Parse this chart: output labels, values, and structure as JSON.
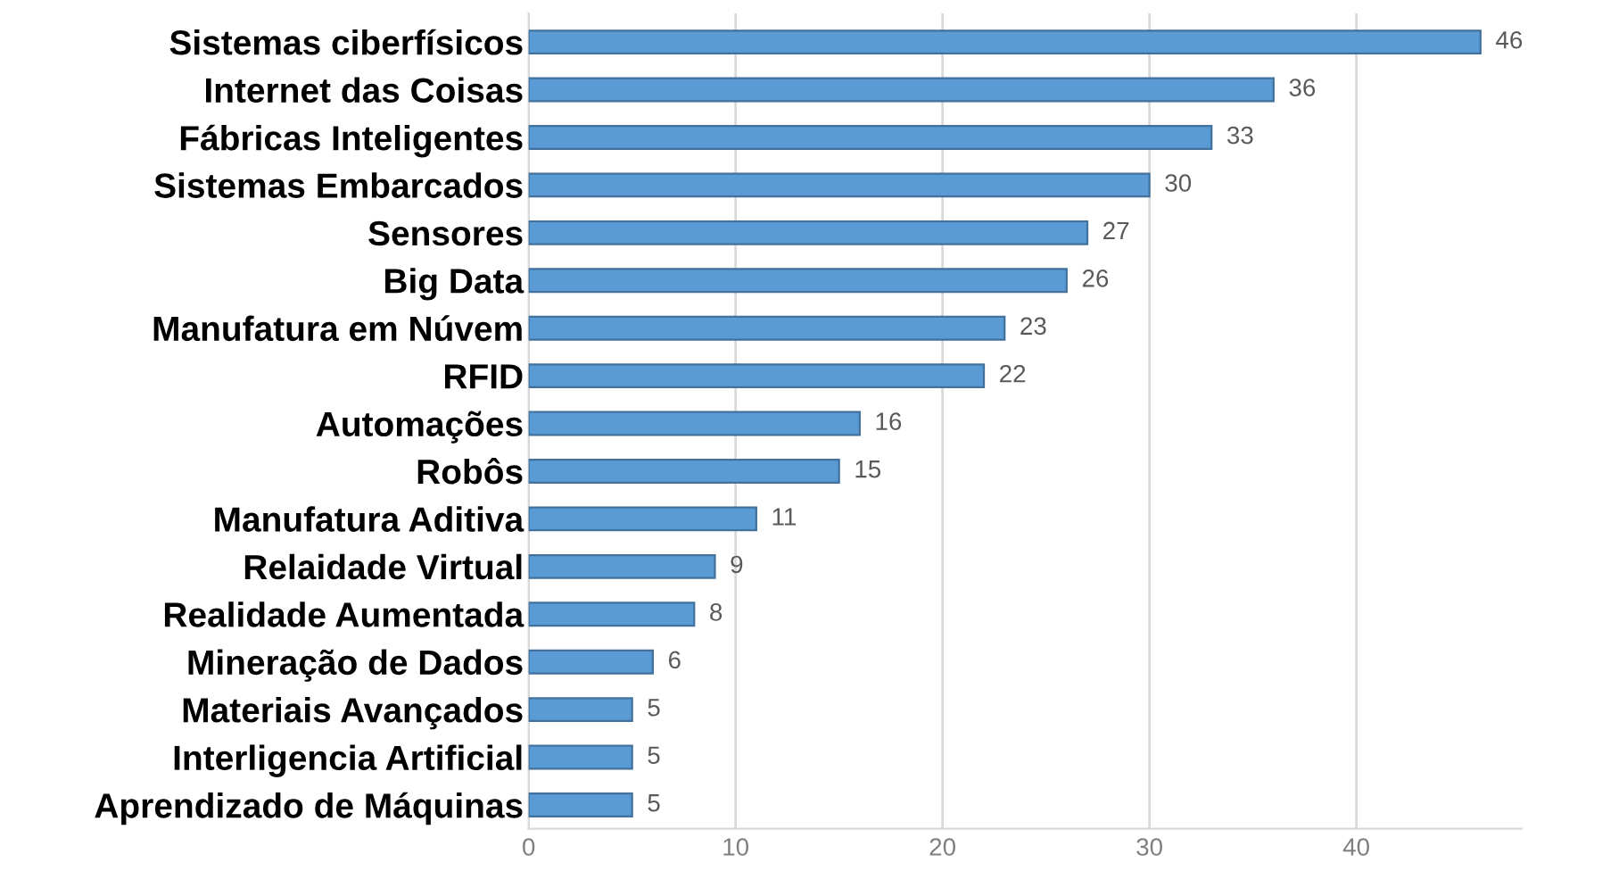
{
  "chart_data": {
    "type": "bar",
    "orientation": "horizontal",
    "categories": [
      "Sistemas ciberfísicos",
      "Internet das Coisas",
      "Fábricas Inteligentes",
      "Sistemas Embarcados",
      "Sensores",
      "Big Data",
      "Manufatura em Núvem",
      "RFID",
      "Automações",
      "Robôs",
      "Manufatura Aditiva",
      "Relaidade Virtual",
      "Realidade Aumentada",
      "Mineração de Dados",
      "Materiais Avançados",
      "Interligencia Artificial",
      "Aprendizado de Máquinas"
    ],
    "values": [
      46,
      36,
      33,
      30,
      27,
      26,
      23,
      22,
      16,
      15,
      11,
      9,
      8,
      6,
      5,
      5,
      5
    ],
    "color": "#5b9bd5",
    "xlim": [
      0,
      48
    ],
    "xticks": [
      0,
      10,
      20,
      30,
      40
    ],
    "grid": "x",
    "data_labels": true,
    "legend": false
  }
}
